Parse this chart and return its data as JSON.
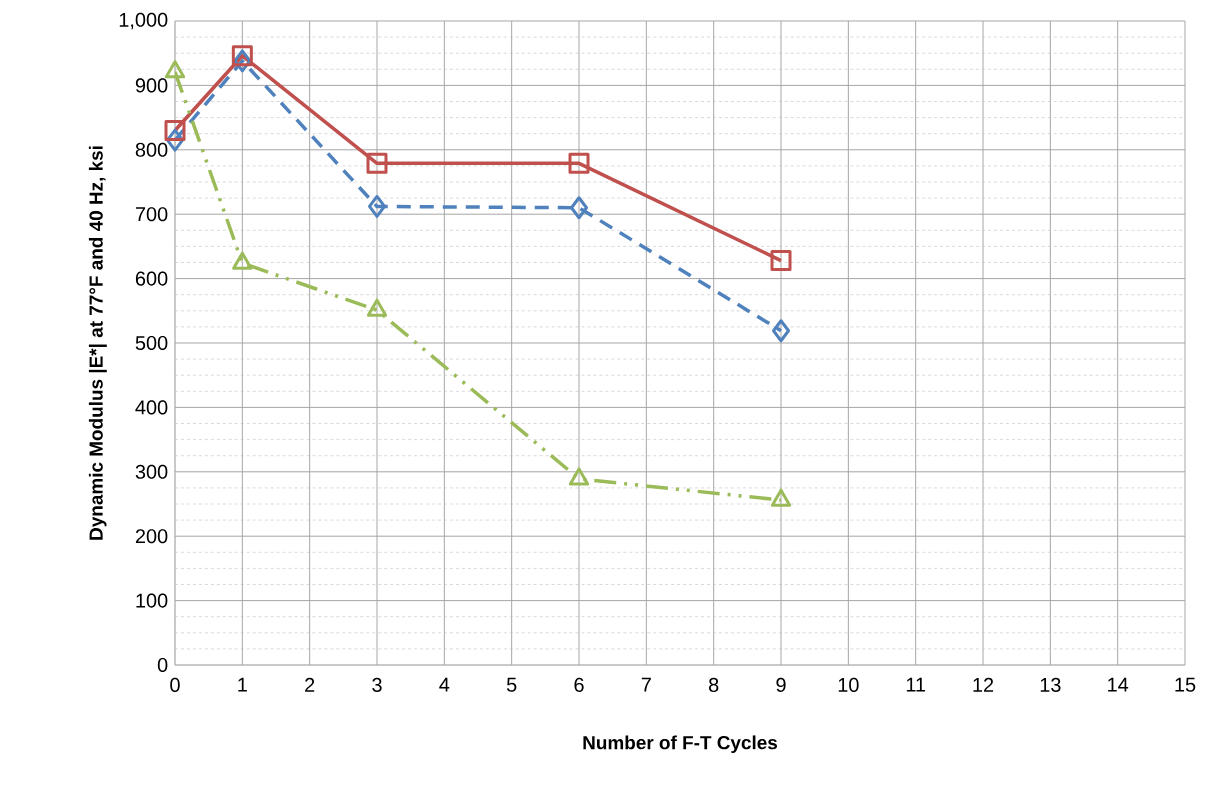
{
  "chart_data": {
    "type": "line",
    "xlabel": "Number of F-T Cycles",
    "ylabel": "Dynamic Modulus |E*| at 77°F and 40 Hz, ksi",
    "xlim": [
      0,
      15
    ],
    "xticks": [
      0,
      1,
      2,
      3,
      4,
      5,
      6,
      7,
      8,
      9,
      10,
      11,
      12,
      13,
      14,
      15
    ],
    "ylim": [
      0,
      1000
    ],
    "yticks": [
      0,
      100,
      200,
      300,
      400,
      500,
      600,
      700,
      800,
      900,
      {
        "value": 1000,
        "label": "1,000"
      }
    ],
    "grid": true,
    "series": [
      {
        "color": "#4f81bd",
        "marker": "diamond",
        "line_style": "dashed",
        "x": [
          0,
          1,
          3,
          6,
          9
        ],
        "values": [
          815,
          938,
          712,
          710,
          519
        ]
      },
      {
        "color": "#c0504d",
        "marker": "square",
        "line_style": "solid",
        "x": [
          0,
          1,
          3,
          6,
          9
        ],
        "values": [
          830,
          946,
          779,
          779,
          628
        ]
      },
      {
        "color": "#9bbb59",
        "marker": "triangle",
        "line_style": "dashdotdot",
        "x": [
          0,
          1,
          3,
          6,
          9
        ],
        "values": [
          921,
          624,
          551,
          289,
          256
        ]
      }
    ]
  }
}
